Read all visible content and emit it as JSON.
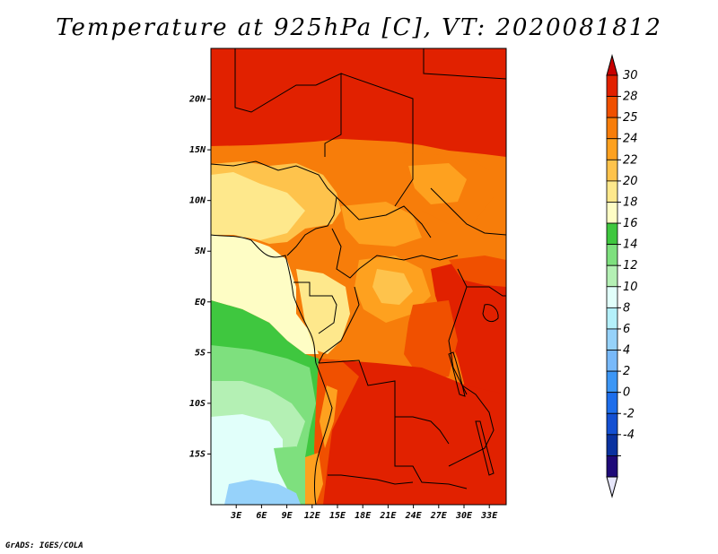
{
  "title": "Temperature at 925hPa [C], VT: 2020081812",
  "footer": "GrADS: IGES/COLA",
  "map": {
    "lon_range": [
      0,
      35
    ],
    "lat_range": [
      -20,
      25
    ],
    "lat_ticks": [
      {
        "value": 20,
        "label": "20N"
      },
      {
        "value": 15,
        "label": "15N"
      },
      {
        "value": 10,
        "label": "10N"
      },
      {
        "value": 5,
        "label": "5N"
      },
      {
        "value": 0,
        "label": "EQ"
      },
      {
        "value": -5,
        "label": "5S"
      },
      {
        "value": -10,
        "label": "10S"
      },
      {
        "value": -15,
        "label": "15S"
      }
    ],
    "lon_ticks": [
      {
        "value": 3,
        "label": "3E"
      },
      {
        "value": 6,
        "label": "6E"
      },
      {
        "value": 9,
        "label": "9E"
      },
      {
        "value": 12,
        "label": "12E"
      },
      {
        "value": 15,
        "label": "15E"
      },
      {
        "value": 18,
        "label": "18E"
      },
      {
        "value": 21,
        "label": "21E"
      },
      {
        "value": 24,
        "label": "24E"
      },
      {
        "value": 27,
        "label": "27E"
      },
      {
        "value": 30,
        "label": "30E"
      },
      {
        "value": 33,
        "label": "33E"
      }
    ]
  },
  "colorbar": {
    "labels": [
      "30",
      "28",
      "25",
      "24",
      "22",
      "20",
      "18",
      "16",
      "14",
      "12",
      "10",
      "8",
      "6",
      "4",
      "2",
      "0",
      "-2",
      "-4"
    ],
    "colors": [
      "#e12100",
      "#f05000",
      "#f77d0a",
      "#fea11f",
      "#fec34c",
      "#fee88c",
      "#fefdc5",
      "#3fc73f",
      "#7ee07e",
      "#b4f0b4",
      "#e1fffa",
      "#b4f0fa",
      "#96d2fa",
      "#78b9fa",
      "#3c96f5",
      "#1e6eeb",
      "#1450d2",
      "#0a32a0",
      "#1e0a78"
    ],
    "top_arrow_color": "#c80000",
    "bottom_arrow_color": "#e6e6fa"
  }
}
